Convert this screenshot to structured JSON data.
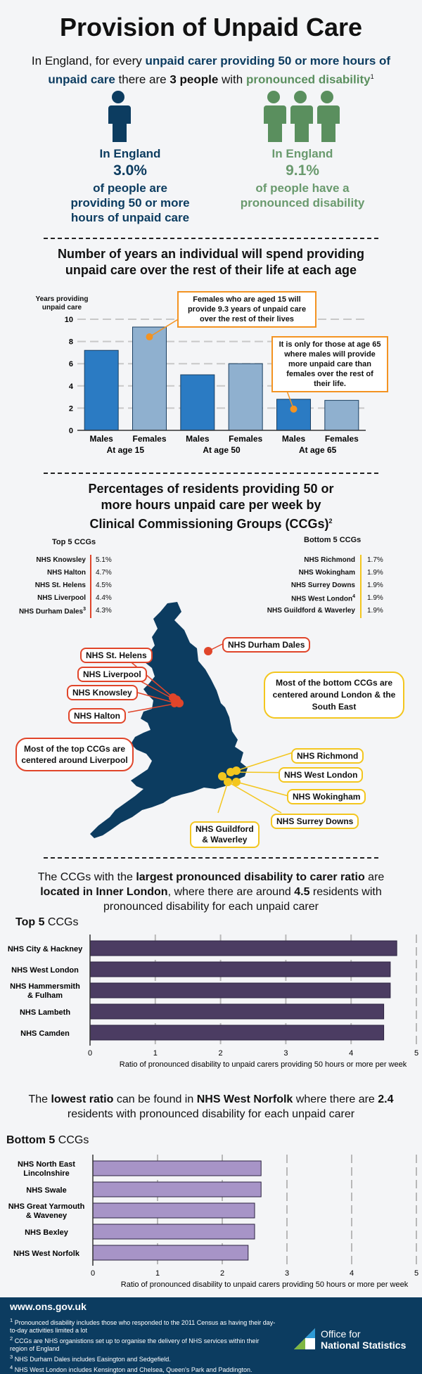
{
  "title": "Provision of Unpaid Care",
  "intro": {
    "line_a": "In England, for every ",
    "line_b": "unpaid carer providing 50 or more hours of unpaid care",
    "line_c": " there are ",
    "line_d": "3 people",
    "line_e": " with ",
    "line_f": "pronounced disability",
    "sup": "1"
  },
  "stat_left": {
    "line1": "In England",
    "value": "3.0%",
    "line2": "of people are",
    "line3": "providing 50 or more",
    "line4": "hours of unpaid care"
  },
  "stat_right": {
    "line1": "In England",
    "value": "9.1%",
    "line2": "of people have a",
    "line3": "pronounced disability"
  },
  "section1": {
    "title1": "Number of years an individual will spend providing",
    "title2": "unpaid care over the rest of their life at each age"
  },
  "colors": {
    "navy": "#0c3c60",
    "male_bar": "#2b7bc3",
    "female_bar": "#8fb0cf",
    "orange": "#f39322",
    "red": "#e0452a",
    "yellow": "#f3c61e",
    "purple_dark": "#4b3c62",
    "purple_light": "#a794c7",
    "green": "#5a8f5e"
  },
  "chart_data": [
    {
      "type": "bar",
      "ylabel": "Years providing unpaid care",
      "ylim": [
        0,
        10
      ],
      "yticks": [
        0,
        2,
        4,
        6,
        8,
        10
      ],
      "categories": [
        "Males",
        "Females",
        "Males",
        "Females",
        "Males",
        "Females"
      ],
      "groups": [
        "At age 15",
        "At age 50",
        "At age 65"
      ],
      "values": [
        7.2,
        9.3,
        5.0,
        6.0,
        2.8,
        2.7
      ],
      "annotations": [
        "Females who are aged 15 will provide 9.3 years of unpaid care over the rest of their lives",
        "It is only for those at age 65 where males will provide more unpaid care than females over the rest of their life."
      ]
    },
    {
      "type": "bar",
      "orientation": "horizontal",
      "title": "Top 5 CCGs",
      "xlabel": "Ratio of pronounced disability to unpaid carers providing 50 hours or more per week",
      "xlim": [
        0,
        5
      ],
      "xticks": [
        0,
        1,
        2,
        3,
        4,
        5
      ],
      "categories": [
        "NHS City & Hackney",
        "NHS West London",
        "NHS Hammersmith & Fulham",
        "NHS Lambeth",
        "NHS Camden"
      ],
      "values": [
        4.7,
        4.6,
        4.6,
        4.5,
        4.5
      ]
    },
    {
      "type": "bar",
      "orientation": "horizontal",
      "title": "Bottom 5 CCGs",
      "xlabel": "Ratio of pronounced disability to unpaid carers providing 50 hours or more per week",
      "xlim": [
        0,
        5
      ],
      "xticks": [
        0,
        1,
        2,
        3,
        4,
        5
      ],
      "categories": [
        "NHS North East Lincolnshire",
        "NHS Swale",
        "NHS Great Yarmouth & Waveney",
        "NHS Bexley",
        "NHS West Norfolk"
      ],
      "values": [
        2.6,
        2.6,
        2.5,
        2.5,
        2.4
      ]
    }
  ],
  "section2": {
    "title1": "Percentages of residents providing 50 or",
    "title2": "more hours unpaid care per week by",
    "title3": "Clinical Commissioning Groups (CCGs)",
    "sup": "2",
    "top_label": "Top 5 CCGs",
    "bottom_label": "Bottom 5 CCGs",
    "top": [
      {
        "name": "NHS Knowsley",
        "pct": "5.1%"
      },
      {
        "name": "NHS Halton",
        "pct": "4.7%"
      },
      {
        "name": "NHS St. Helens",
        "pct": "4.5%"
      },
      {
        "name": "NHS Liverpool",
        "pct": "4.4%"
      },
      {
        "name": "NHS Durham Dales",
        "pct": "4.3%",
        "sup": "3"
      }
    ],
    "bottom": [
      {
        "name": "NHS Richmond",
        "pct": "1.7%"
      },
      {
        "name": "NHS Wokingham",
        "pct": "1.9%"
      },
      {
        "name": "NHS Surrey Downs",
        "pct": "1.9%"
      },
      {
        "name": "NHS West London",
        "pct": "1.9%",
        "sup": "4"
      },
      {
        "name": "NHS Guildford & Waverley",
        "pct": "1.9%"
      }
    ]
  },
  "map": {
    "tags_red": [
      "NHS St. Helens",
      "NHS Liverpool",
      "NHS Knowsley",
      "NHS Halton",
      "NHS Durham Dales"
    ],
    "tags_yel": [
      "NHS Richmond",
      "NHS West London",
      "NHS Wokingham",
      "NHS Surrey Downs",
      "NHS Guildford",
      "& Waverley"
    ],
    "note_top": "Most of the top CCGs are centered around Liverpool",
    "note_bottom": "Most of the bottom CCGs are centered around London & the South East"
  },
  "section3": {
    "t1": "The CCGs with the ",
    "t2": "largest pronounced disability to carer ratio",
    "t3": " are ",
    "t4": "located in Inner London",
    "t5": ", where there are around ",
    "t6": "4.5",
    "t7": " residents with pronounced disability for each unpaid carer",
    "top_title_a": "Top 5",
    "top_title_b": " CCGs"
  },
  "section4": {
    "t1": "The ",
    "t2": "lowest ratio",
    "t3": " can be found in ",
    "t4": "NHS West Norfolk",
    "t5": " where there are ",
    "t6": "2.4",
    "t7": " residents with pronounced disability for each unpaid carer",
    "bottom_title_a": "Bottom 5",
    "bottom_title_b": " CCGs"
  },
  "footer": {
    "url": "www.ons.gov.uk",
    "notes": [
      "Pronounced disability includes those who responded to the 2011 Census as having their day-to-day activities limited a lot",
      "CCGs are NHS organistions set up to organise the delivery of NHS services within their region of England",
      "NHS Durham Dales includes Easington and Sedgefield.",
      "NHS West London includes Kensington and Chelsea, Queen's Park and Paddington."
    ],
    "note_nums": [
      "1",
      "2",
      "3",
      "4"
    ],
    "logo_line1": "Office for",
    "logo_line2": "National Statistics"
  }
}
